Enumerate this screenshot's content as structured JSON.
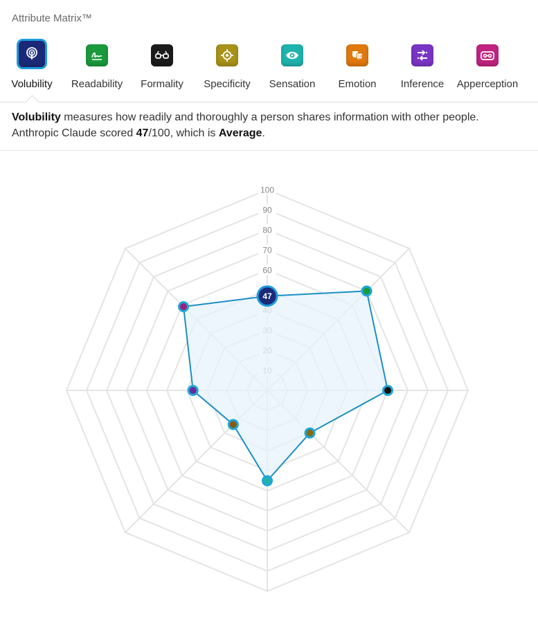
{
  "app_title": "Attribute Matrix™",
  "tabs": [
    {
      "label": "Volubility",
      "icon": "podcast-icon",
      "color": "#1b2a78",
      "active": true
    },
    {
      "label": "Readability",
      "icon": "signature-icon",
      "color": "#1a9a3c",
      "active": false
    },
    {
      "label": "Formality",
      "icon": "glasses-icon",
      "color": "#1c1c1c",
      "active": false
    },
    {
      "label": "Specificity",
      "icon": "target-icon",
      "color": "#a8921a",
      "active": false
    },
    {
      "label": "Sensation",
      "icon": "eye-icon",
      "color": "#1fb3ae",
      "active": false
    },
    {
      "label": "Emotion",
      "icon": "masks-icon",
      "color": "#e0790f",
      "active": false
    },
    {
      "label": "Inference",
      "icon": "shuffle-icon",
      "color": "#7a35c4",
      "active": false
    },
    {
      "label": "Apperception",
      "icon": "cassette-icon",
      "color": "#c0247f",
      "active": false
    }
  ],
  "description": {
    "term": "Volubility",
    "text1": " measures how readily and thoroughly a person shares information with other people.",
    "subject": "Anthropic Claude scored ",
    "score": "47",
    "max": "/100, which is ",
    "rating": "Average",
    "end": "."
  },
  "chart_data": {
    "type": "radar",
    "axes": [
      "Volubility",
      "Readability",
      "Formality",
      "Specificity",
      "Sensation",
      "Emotion",
      "Inference",
      "Apperception"
    ],
    "values": [
      47,
      70,
      60,
      30,
      45,
      24,
      37,
      59
    ],
    "point_colors": [
      "#1b2a78",
      "#1a9a3c",
      "#111111",
      "#8a6a10",
      "#1fb3ae",
      "#8a5a10",
      "#6a2a9a",
      "#9a2080"
    ],
    "ylim": [
      0,
      100
    ],
    "ticks": [
      10,
      20,
      30,
      40,
      50,
      60,
      70,
      80,
      90,
      100
    ],
    "highlight_label": "47",
    "line_color": "#1a8fc4",
    "fill_color": "#e6f3fb",
    "grid": true
  }
}
